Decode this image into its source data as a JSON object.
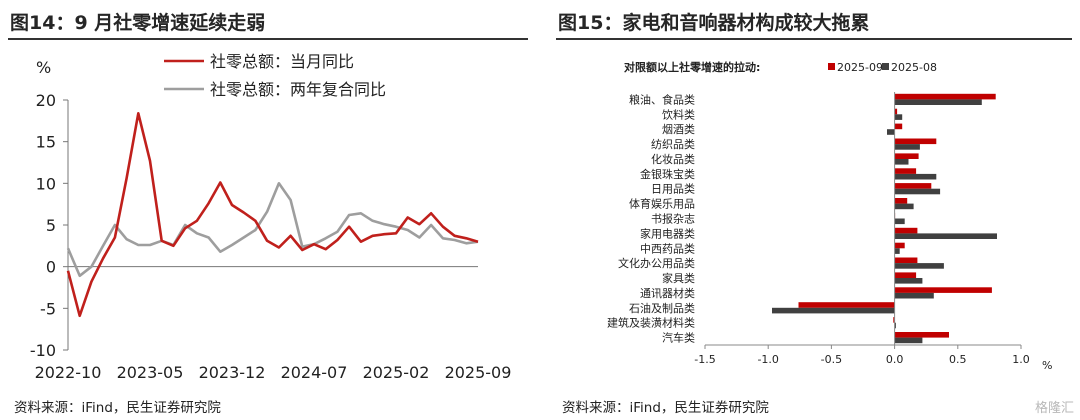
{
  "left": {
    "figure_title": "图14：9 月社零增速延续走弱",
    "source": "资料来源：iFind，民生证券研究院"
  },
  "right": {
    "figure_title": "图15：家电和音响器材构成较大拖累",
    "source": "资料来源：iFind，民生证券研究院"
  },
  "watermark": "格隆汇",
  "chart_data": [
    {
      "type": "line",
      "title": "",
      "ylabel": "%",
      "ylim": [
        -10,
        20
      ],
      "yticks": [
        -10,
        -5,
        0,
        5,
        10,
        15,
        20
      ],
      "xtick_labels": [
        "2022-10",
        "2023-05",
        "2023-12",
        "2024-07",
        "2025-02",
        "2025-09"
      ],
      "x": [
        "2022-10",
        "2022-11",
        "2022-12",
        "2023-01",
        "2023-02",
        "2023-03",
        "2023-04",
        "2023-05",
        "2023-06",
        "2023-07",
        "2023-08",
        "2023-09",
        "2023-10",
        "2023-11",
        "2023-12",
        "2024-01",
        "2024-02",
        "2024-03",
        "2024-04",
        "2024-05",
        "2024-06",
        "2024-07",
        "2024-08",
        "2024-09",
        "2024-10",
        "2024-11",
        "2024-12",
        "2025-01",
        "2025-02",
        "2025-03",
        "2025-04",
        "2025-05",
        "2025-06",
        "2025-07",
        "2025-08",
        "2025-09"
      ],
      "series": [
        {
          "name": "社零总额：当月同比",
          "color": "#c0201c",
          "values": [
            -0.5,
            -5.9,
            -1.8,
            1.0,
            3.5,
            10.6,
            18.4,
            12.7,
            3.1,
            2.5,
            4.6,
            5.5,
            7.6,
            10.1,
            7.4,
            6.5,
            5.5,
            3.1,
            2.3,
            3.7,
            2.0,
            2.7,
            2.1,
            3.2,
            4.8,
            3.0,
            3.7,
            3.9,
            4.0,
            5.9,
            5.1,
            6.4,
            4.8,
            3.7,
            3.4,
            3.0
          ]
        },
        {
          "name": "社零总额：两年复合同比",
          "color": "#9e9e9e",
          "values": [
            2.2,
            -1.1,
            0.0,
            2.5,
            5.0,
            3.3,
            2.6,
            2.6,
            3.1,
            2.6,
            5.0,
            4.0,
            3.5,
            1.8,
            2.6,
            3.5,
            4.4,
            6.6,
            10.0,
            8.0,
            2.4,
            2.7,
            3.4,
            4.2,
            6.2,
            6.4,
            5.5,
            5.1,
            4.8,
            4.4,
            3.5,
            5.0,
            3.4,
            3.2,
            2.8,
            3.0
          ]
        }
      ]
    },
    {
      "type": "bar",
      "orientation": "horizontal",
      "title": "对限额以上社零增速的拉动:",
      "xlabel": "%",
      "xlim": [
        -1.5,
        1.0
      ],
      "xticks": [
        -1.5,
        -1.0,
        -0.5,
        0.0,
        0.5,
        1.0
      ],
      "xtick_labels": [
        "-1.5",
        "-1.0",
        "-0.5",
        "0.0",
        "0.5",
        "1.0"
      ],
      "categories": [
        "粮油、食品类",
        "饮料类",
        "烟酒类",
        "纺织品类",
        "化妆品类",
        "金银珠宝类",
        "日用品类",
        "体育娱乐用品",
        "书报杂志",
        "家用电器类",
        "中西药品类",
        "文化办公用品类",
        "家具类",
        "通讯器材类",
        "石油及制品类",
        "建筑及装潢材料类",
        "汽车类"
      ],
      "series": [
        {
          "name": "2025-09",
          "color": "#c00000",
          "values": [
            0.8,
            0.02,
            0.06,
            0.33,
            0.19,
            0.17,
            0.29,
            0.1,
            0.0,
            0.18,
            0.08,
            0.18,
            0.17,
            0.77,
            -0.76,
            -0.01,
            0.43
          ]
        },
        {
          "name": "2025-08",
          "color": "#404040",
          "values": [
            0.69,
            0.06,
            -0.06,
            0.2,
            0.11,
            0.33,
            0.36,
            0.15,
            0.08,
            0.81,
            0.04,
            0.39,
            0.22,
            0.31,
            -0.97,
            0.01,
            0.22
          ]
        }
      ]
    }
  ]
}
